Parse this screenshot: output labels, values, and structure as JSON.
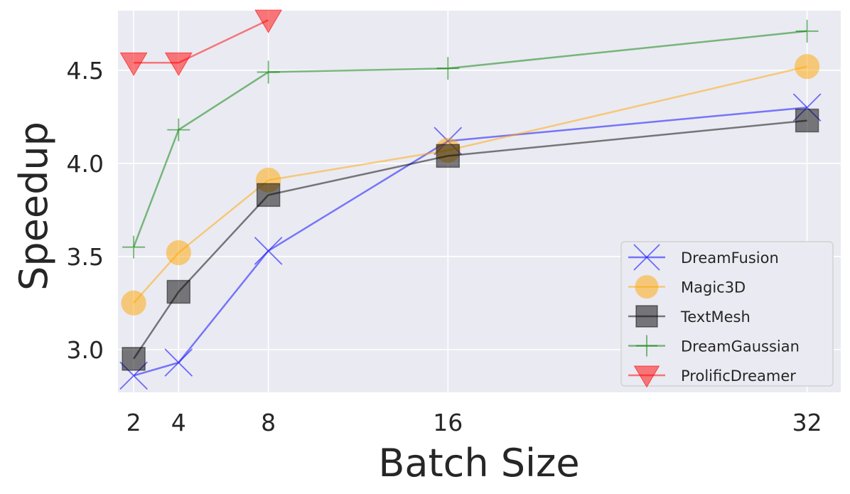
{
  "chart_data": {
    "type": "line",
    "title": "",
    "xlabel": "Batch Size",
    "ylabel": "Speedup",
    "xlim": [
      1.3,
      33.5
    ],
    "ylim": [
      2.77,
      4.82
    ],
    "xticks": [
      2,
      4,
      8,
      16,
      32
    ],
    "xtick_labels": [
      "2",
      "4",
      "8",
      "16",
      "32"
    ],
    "yticks": [
      3.0,
      3.5,
      4.0,
      4.5
    ],
    "ytick_labels": [
      "3.0",
      "3.5",
      "4.0",
      "4.5"
    ],
    "grid": true,
    "legend_position": "lower-right",
    "series": [
      {
        "name": "DreamFusion",
        "color": "#0000ff",
        "marker": "x",
        "x": [
          2,
          4,
          8,
          16,
          32
        ],
        "values": [
          2.86,
          2.93,
          3.53,
          4.12,
          4.3
        ]
      },
      {
        "name": "Magic3D",
        "color": "#ffa500",
        "marker": "o",
        "x": [
          2,
          4,
          8,
          16,
          32
        ],
        "values": [
          3.25,
          3.52,
          3.91,
          4.07,
          4.52
        ]
      },
      {
        "name": "TextMesh",
        "color": "#000000",
        "marker": "s",
        "x": [
          2,
          4,
          8,
          16,
          32
        ],
        "values": [
          2.95,
          3.31,
          3.83,
          4.04,
          4.23
        ]
      },
      {
        "name": "DreamGaussian",
        "color": "#008000",
        "marker": "+",
        "x": [
          2,
          4,
          8,
          16,
          32
        ],
        "values": [
          3.55,
          4.18,
          4.49,
          4.51,
          4.71
        ]
      },
      {
        "name": "ProlificDreamer",
        "color": "#ff0000",
        "marker": "v",
        "x": [
          2,
          4,
          8
        ],
        "values": [
          4.54,
          4.54,
          4.77
        ]
      }
    ]
  }
}
